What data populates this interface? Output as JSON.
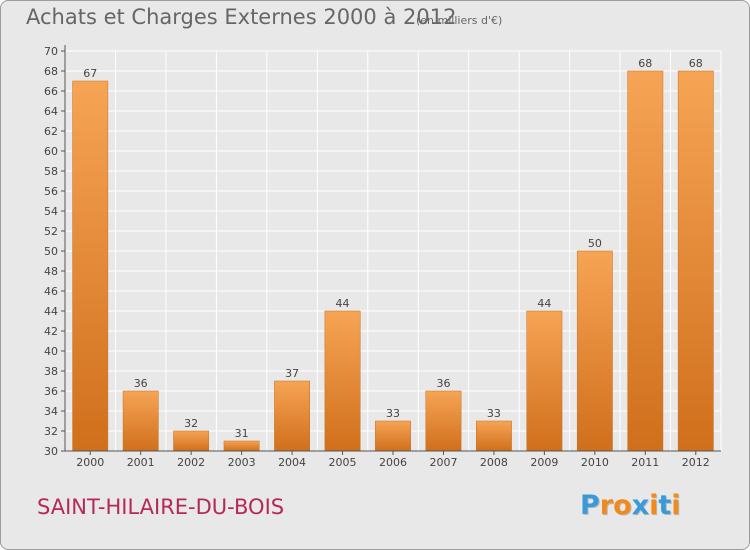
{
  "header": {
    "title": "Achats et Charges Externes 2000 à 2012",
    "subtitle": "(en milliers d'€)"
  },
  "footer": {
    "location": "SAINT-HILAIRE-DU-BOIS",
    "logo_text": "Proxiti"
  },
  "colors": {
    "bar_light": "#f6a455",
    "bar_dark": "#d06f1c",
    "plot_background": "#e8e8e8",
    "grid": "#ffffff",
    "location_text": "#b4285a",
    "logo_letters": [
      "#3a9ad9",
      "#f08a1c",
      "#f08a1c",
      "#3a9ad9",
      "#f08a1c",
      "#3a9ad9",
      "#f08a1c"
    ]
  },
  "chart_data": {
    "type": "bar",
    "title": "Achats et Charges Externes 2000 à 2012",
    "subtitle": "(en milliers d'€)",
    "xlabel": "",
    "ylabel": "",
    "categories": [
      "2000",
      "2001",
      "2002",
      "2003",
      "2004",
      "2005",
      "2006",
      "2007",
      "2008",
      "2009",
      "2010",
      "2011",
      "2012"
    ],
    "values": [
      67,
      36,
      32,
      31,
      37,
      44,
      33,
      36,
      33,
      44,
      50,
      68,
      68
    ],
    "ylim": [
      30,
      70
    ],
    "yticks": [
      30,
      32,
      34,
      36,
      38,
      40,
      42,
      44,
      46,
      48,
      50,
      52,
      54,
      56,
      58,
      60,
      62,
      64,
      66,
      68,
      70
    ],
    "grid": true,
    "legend": "none",
    "data_labels": true
  }
}
